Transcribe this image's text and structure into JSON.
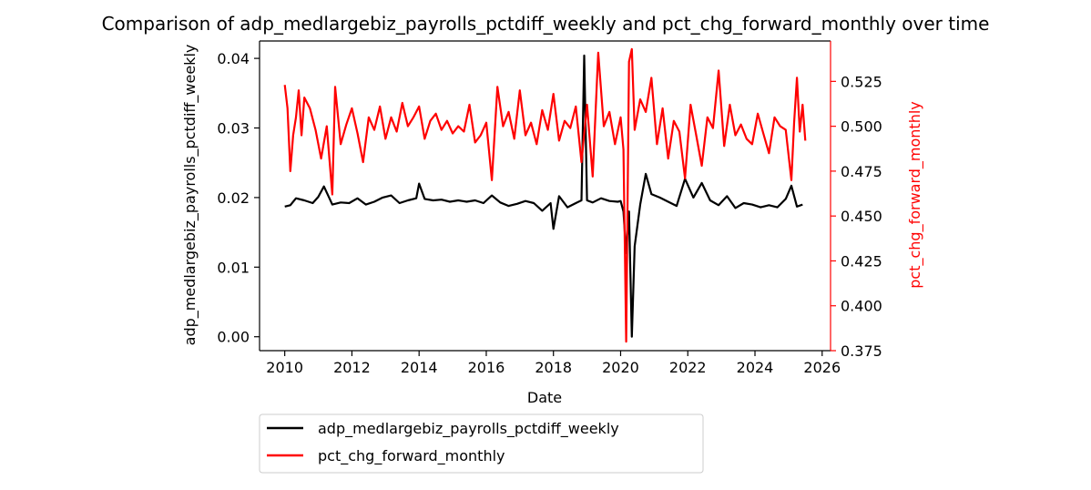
{
  "chart_data": {
    "type": "line",
    "title": "Comparison of adp_medlargebiz_payrolls_pctdiff_weekly and pct_chg_forward_monthly over time",
    "xlabel": "Date",
    "ylabel_left": "adp_medlargebiz_payrolls_pctdiff_weekly",
    "ylabel_right": "pct_chg_forward_monthly",
    "xlim": [
      "2009-04-01",
      "2026-04-01"
    ],
    "x_ticks": [
      "2010",
      "2012",
      "2014",
      "2016",
      "2018",
      "2020",
      "2022",
      "2024",
      "2026"
    ],
    "ylim_left": [
      -0.002,
      0.0425
    ],
    "ylim_right": [
      0.375,
      0.5475
    ],
    "y_ticks_left": [
      "0.00",
      "0.01",
      "0.02",
      "0.03",
      "0.04"
    ],
    "y_ticks_right": [
      "0.375",
      "0.400",
      "0.425",
      "0.450",
      "0.475",
      "0.500",
      "0.525"
    ],
    "grid": false,
    "legend_placement": "below plot, left",
    "colors": {
      "left_axis": "#000000",
      "right_axis": "#ff0000",
      "series_1": "#000000",
      "series_2": "#ff0000"
    },
    "series": [
      {
        "name": "adp_medlargebiz_payrolls_pctdiff_weekly",
        "axis": "left",
        "x": [
          "2010-01",
          "2010-03",
          "2010-05",
          "2010-08",
          "2010-11",
          "2011-01",
          "2011-03",
          "2011-06",
          "2011-09",
          "2011-12",
          "2012-03",
          "2012-06",
          "2012-09",
          "2012-12",
          "2013-03",
          "2013-06",
          "2013-09",
          "2013-12",
          "2014-01",
          "2014-03",
          "2014-06",
          "2014-09",
          "2014-12",
          "2015-03",
          "2015-06",
          "2015-09",
          "2015-12",
          "2016-03",
          "2016-06",
          "2016-09",
          "2016-12",
          "2017-03",
          "2017-06",
          "2017-09",
          "2017-12",
          "2018-01",
          "2018-03",
          "2018-06",
          "2018-09",
          "2018-11",
          "2018-12",
          "2019-01",
          "2019-03",
          "2019-06",
          "2019-09",
          "2019-12",
          "2020-01",
          "2020-02",
          "2020-03",
          "2020-04",
          "2020-05",
          "2020-06",
          "2020-08",
          "2020-10",
          "2020-12",
          "2021-03",
          "2021-06",
          "2021-09",
          "2021-12",
          "2022-03",
          "2022-06",
          "2022-09",
          "2022-12",
          "2023-03",
          "2023-06",
          "2023-09",
          "2023-12",
          "2024-03",
          "2024-06",
          "2024-09",
          "2024-12",
          "2025-02",
          "2025-04",
          "2025-06"
        ],
        "values": [
          0.0187,
          0.0189,
          0.0199,
          0.0196,
          0.0192,
          0.0201,
          0.0216,
          0.019,
          0.0193,
          0.0192,
          0.0199,
          0.019,
          0.0194,
          0.02,
          0.0203,
          0.0192,
          0.0196,
          0.0199,
          0.022,
          0.0198,
          0.0196,
          0.0197,
          0.0194,
          0.0196,
          0.0194,
          0.0196,
          0.0192,
          0.0203,
          0.0193,
          0.0188,
          0.0191,
          0.0195,
          0.0192,
          0.0181,
          0.0192,
          0.0155,
          0.0202,
          0.0186,
          0.0192,
          0.0196,
          0.0404,
          0.0196,
          0.0193,
          0.0199,
          0.0195,
          0.0194,
          0.0195,
          0.018,
          0.012,
          0.018,
          0.0,
          0.013,
          0.019,
          0.0234,
          0.0205,
          0.02,
          0.0194,
          0.0188,
          0.0227,
          0.02,
          0.0221,
          0.0196,
          0.0189,
          0.0202,
          0.0185,
          0.0192,
          0.019,
          0.0186,
          0.0189,
          0.0186,
          0.0198,
          0.0217,
          0.0187,
          0.019
        ]
      },
      {
        "name": "pct_chg_forward_monthly",
        "axis": "right",
        "x": [
          "2010-01",
          "2010-02",
          "2010-03",
          "2010-04",
          "2010-05",
          "2010-06",
          "2010-07",
          "2010-08",
          "2010-10",
          "2010-12",
          "2011-02",
          "2011-04",
          "2011-06",
          "2011-07",
          "2011-09",
          "2011-11",
          "2012-01",
          "2012-03",
          "2012-05",
          "2012-07",
          "2012-09",
          "2012-11",
          "2013-01",
          "2013-03",
          "2013-05",
          "2013-07",
          "2013-09",
          "2013-11",
          "2014-01",
          "2014-03",
          "2014-05",
          "2014-07",
          "2014-09",
          "2014-11",
          "2015-01",
          "2015-03",
          "2015-05",
          "2015-07",
          "2015-09",
          "2015-11",
          "2016-01",
          "2016-03",
          "2016-05",
          "2016-07",
          "2016-09",
          "2016-11",
          "2017-01",
          "2017-03",
          "2017-05",
          "2017-07",
          "2017-09",
          "2017-11",
          "2018-01",
          "2018-03",
          "2018-05",
          "2018-07",
          "2018-09",
          "2018-11",
          "2019-01",
          "2019-03",
          "2019-05",
          "2019-07",
          "2019-09",
          "2019-11",
          "2020-01",
          "2020-02",
          "2020-03",
          "2020-04",
          "2020-05",
          "2020-06",
          "2020-08",
          "2020-10",
          "2020-12",
          "2021-02",
          "2021-04",
          "2021-06",
          "2021-08",
          "2021-10",
          "2021-12",
          "2022-02",
          "2022-04",
          "2022-06",
          "2022-08",
          "2022-10",
          "2022-12",
          "2023-02",
          "2023-04",
          "2023-06",
          "2023-08",
          "2023-10",
          "2023-12",
          "2024-02",
          "2024-04",
          "2024-06",
          "2024-08",
          "2024-10",
          "2024-12",
          "2025-02",
          "2025-03",
          "2025-04",
          "2025-05",
          "2025-06",
          "2025-07"
        ],
        "values": [
          0.523,
          0.51,
          0.475,
          0.495,
          0.505,
          0.52,
          0.495,
          0.516,
          0.51,
          0.498,
          0.482,
          0.5,
          0.462,
          0.522,
          0.49,
          0.501,
          0.51,
          0.496,
          0.48,
          0.505,
          0.498,
          0.511,
          0.493,
          0.505,
          0.497,
          0.513,
          0.5,
          0.505,
          0.511,
          0.493,
          0.503,
          0.507,
          0.498,
          0.503,
          0.496,
          0.5,
          0.497,
          0.512,
          0.491,
          0.495,
          0.502,
          0.47,
          0.522,
          0.5,
          0.508,
          0.493,
          0.52,
          0.495,
          0.502,
          0.49,
          0.509,
          0.498,
          0.518,
          0.492,
          0.503,
          0.499,
          0.511,
          0.48,
          0.512,
          0.472,
          0.541,
          0.5,
          0.508,
          0.49,
          0.505,
          0.487,
          0.38,
          0.536,
          0.543,
          0.498,
          0.515,
          0.508,
          0.527,
          0.49,
          0.51,
          0.482,
          0.503,
          0.497,
          0.471,
          0.512,
          0.495,
          0.478,
          0.505,
          0.499,
          0.531,
          0.489,
          0.512,
          0.495,
          0.501,
          0.493,
          0.49,
          0.507,
          0.496,
          0.485,
          0.505,
          0.5,
          0.498,
          0.47,
          0.502,
          0.527,
          0.497,
          0.512,
          0.492
        ]
      }
    ]
  }
}
